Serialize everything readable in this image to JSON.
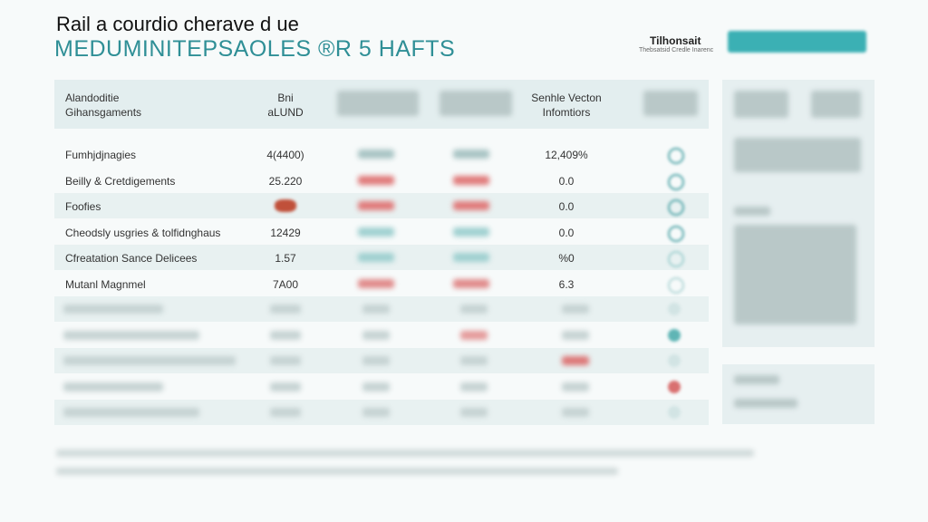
{
  "header": {
    "title": "Rail a courdio cherave d ue",
    "subtitle": "MEDUMINITEPSAOLES ®R 5 HAFTS"
  },
  "brand": {
    "name": "Tilhonsait",
    "tagline": "Thebsatsid Credle Inarenc"
  },
  "table": {
    "columns": {
      "label": "Alandoditie Gihansgaments",
      "value": "Bni aLUND",
      "rate": "Senhle Vecton Infomtiors"
    },
    "rows": [
      {
        "label": "Fumhjdjnagies",
        "value": "4(4400)",
        "rate": "12,409%"
      },
      {
        "label": "Beilly & Cretdigements",
        "value": "25.220",
        "rate": "0.0"
      },
      {
        "label": "Foofies",
        "rate": "0.0"
      },
      {
        "label": "Cheodsly usgries & tolfidnghaus",
        "value": "12429",
        "rate": "0.0"
      },
      {
        "label": "Cfreatation Sance Delicees",
        "value": "1.57",
        "rate": "%0"
      },
      {
        "label": "Mutanl Magnmel",
        "value": "7A00",
        "rate": "6.3"
      }
    ]
  }
}
